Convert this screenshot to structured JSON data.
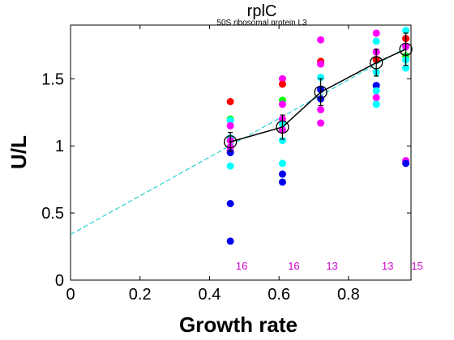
{
  "chart_data": {
    "type": "scatter",
    "title": "rplC",
    "subtitle": "50S ribosomal protein L3",
    "xlabel": "Growth rate",
    "ylabel": "U/L",
    "xlim": [
      0,
      0.98
    ],
    "ylim": [
      0,
      1.9
    ],
    "xticks": [
      "0",
      "0.2",
      "0.4",
      "0.6",
      "0.8"
    ],
    "yticks": [
      "0",
      "0.5",
      "1",
      "1.5"
    ],
    "xtick_values": [
      0,
      0.2,
      0.4,
      0.6,
      0.8
    ],
    "ytick_values": [
      0,
      0.5,
      1,
      1.5
    ],
    "grid": false,
    "colors": {
      "red": "#ff0000",
      "magenta": "#ff00ff",
      "green": "#00ff00",
      "cyan": "#00ffff",
      "blue": "#0000ee",
      "mean_line": "#000000",
      "fit_line": "#00cccc",
      "count_text": "#cc00cc"
    },
    "points": [
      {
        "x": 0.46,
        "y": 1.33,
        "color": "red"
      },
      {
        "x": 0.46,
        "y": 1.2,
        "color": "green"
      },
      {
        "x": 0.46,
        "y": 1.19,
        "color": "cyan"
      },
      {
        "x": 0.46,
        "y": 1.15,
        "color": "magenta"
      },
      {
        "x": 0.46,
        "y": 1.06,
        "color": "cyan"
      },
      {
        "x": 0.46,
        "y": 1.04,
        "color": "magenta"
      },
      {
        "x": 0.46,
        "y": 0.99,
        "color": "magenta"
      },
      {
        "x": 0.46,
        "y": 0.96,
        "color": "magenta"
      },
      {
        "x": 0.46,
        "y": 0.95,
        "color": "blue"
      },
      {
        "x": 0.46,
        "y": 0.85,
        "color": "cyan"
      },
      {
        "x": 0.46,
        "y": 0.57,
        "color": "blue"
      },
      {
        "x": 0.46,
        "y": 0.29,
        "color": "blue"
      },
      {
        "x": 0.61,
        "y": 1.5,
        "color": "magenta"
      },
      {
        "x": 0.61,
        "y": 1.46,
        "color": "red"
      },
      {
        "x": 0.61,
        "y": 1.34,
        "color": "green"
      },
      {
        "x": 0.61,
        "y": 1.31,
        "color": "magenta"
      },
      {
        "x": 0.61,
        "y": 1.2,
        "color": "magenta"
      },
      {
        "x": 0.61,
        "y": 1.16,
        "color": "cyan"
      },
      {
        "x": 0.61,
        "y": 1.12,
        "color": "magenta"
      },
      {
        "x": 0.61,
        "y": 1.04,
        "color": "cyan"
      },
      {
        "x": 0.61,
        "y": 0.87,
        "color": "cyan"
      },
      {
        "x": 0.61,
        "y": 0.79,
        "color": "blue"
      },
      {
        "x": 0.61,
        "y": 0.73,
        "color": "blue"
      },
      {
        "x": 0.72,
        "y": 1.79,
        "color": "magenta"
      },
      {
        "x": 0.72,
        "y": 1.63,
        "color": "red"
      },
      {
        "x": 0.72,
        "y": 1.61,
        "color": "magenta"
      },
      {
        "x": 0.72,
        "y": 1.51,
        "color": "cyan"
      },
      {
        "x": 0.72,
        "y": 1.42,
        "color": "blue"
      },
      {
        "x": 0.72,
        "y": 1.35,
        "color": "blue"
      },
      {
        "x": 0.72,
        "y": 1.27,
        "color": "magenta"
      },
      {
        "x": 0.72,
        "y": 1.17,
        "color": "magenta"
      },
      {
        "x": 0.88,
        "y": 1.84,
        "color": "magenta"
      },
      {
        "x": 0.88,
        "y": 1.78,
        "color": "cyan"
      },
      {
        "x": 0.88,
        "y": 1.7,
        "color": "magenta"
      },
      {
        "x": 0.88,
        "y": 1.64,
        "color": "red"
      },
      {
        "x": 0.88,
        "y": 1.55,
        "color": "cyan"
      },
      {
        "x": 0.88,
        "y": 1.45,
        "color": "blue"
      },
      {
        "x": 0.88,
        "y": 1.41,
        "color": "cyan"
      },
      {
        "x": 0.88,
        "y": 1.36,
        "color": "magenta"
      },
      {
        "x": 0.88,
        "y": 1.31,
        "color": "cyan"
      },
      {
        "x": 0.965,
        "y": 1.86,
        "color": "cyan"
      },
      {
        "x": 0.965,
        "y": 1.8,
        "color": "red"
      },
      {
        "x": 0.965,
        "y": 1.74,
        "color": "magenta"
      },
      {
        "x": 0.965,
        "y": 1.67,
        "color": "green"
      },
      {
        "x": 0.965,
        "y": 1.64,
        "color": "cyan"
      },
      {
        "x": 0.965,
        "y": 1.58,
        "color": "cyan"
      },
      {
        "x": 0.965,
        "y": 0.89,
        "color": "magenta"
      },
      {
        "x": 0.965,
        "y": 0.87,
        "color": "blue"
      }
    ],
    "means": [
      {
        "x": 0.46,
        "y": 1.03,
        "err": 0.07
      },
      {
        "x": 0.61,
        "y": 1.14,
        "err": 0.09
      },
      {
        "x": 0.72,
        "y": 1.4,
        "err": 0.1
      },
      {
        "x": 0.88,
        "y": 1.62,
        "err": 0.1
      },
      {
        "x": 0.965,
        "y": 1.72,
        "err": 0.12
      }
    ],
    "fit_line": {
      "x": [
        0,
        0.965
      ],
      "y": [
        0.34,
        1.73
      ]
    },
    "counts": [
      {
        "x": 0.46,
        "label": "16"
      },
      {
        "x": 0.61,
        "label": "16"
      },
      {
        "x": 0.72,
        "label": "13"
      },
      {
        "x": 0.88,
        "label": "13"
      },
      {
        "x": 0.965,
        "label": "15"
      }
    ]
  }
}
